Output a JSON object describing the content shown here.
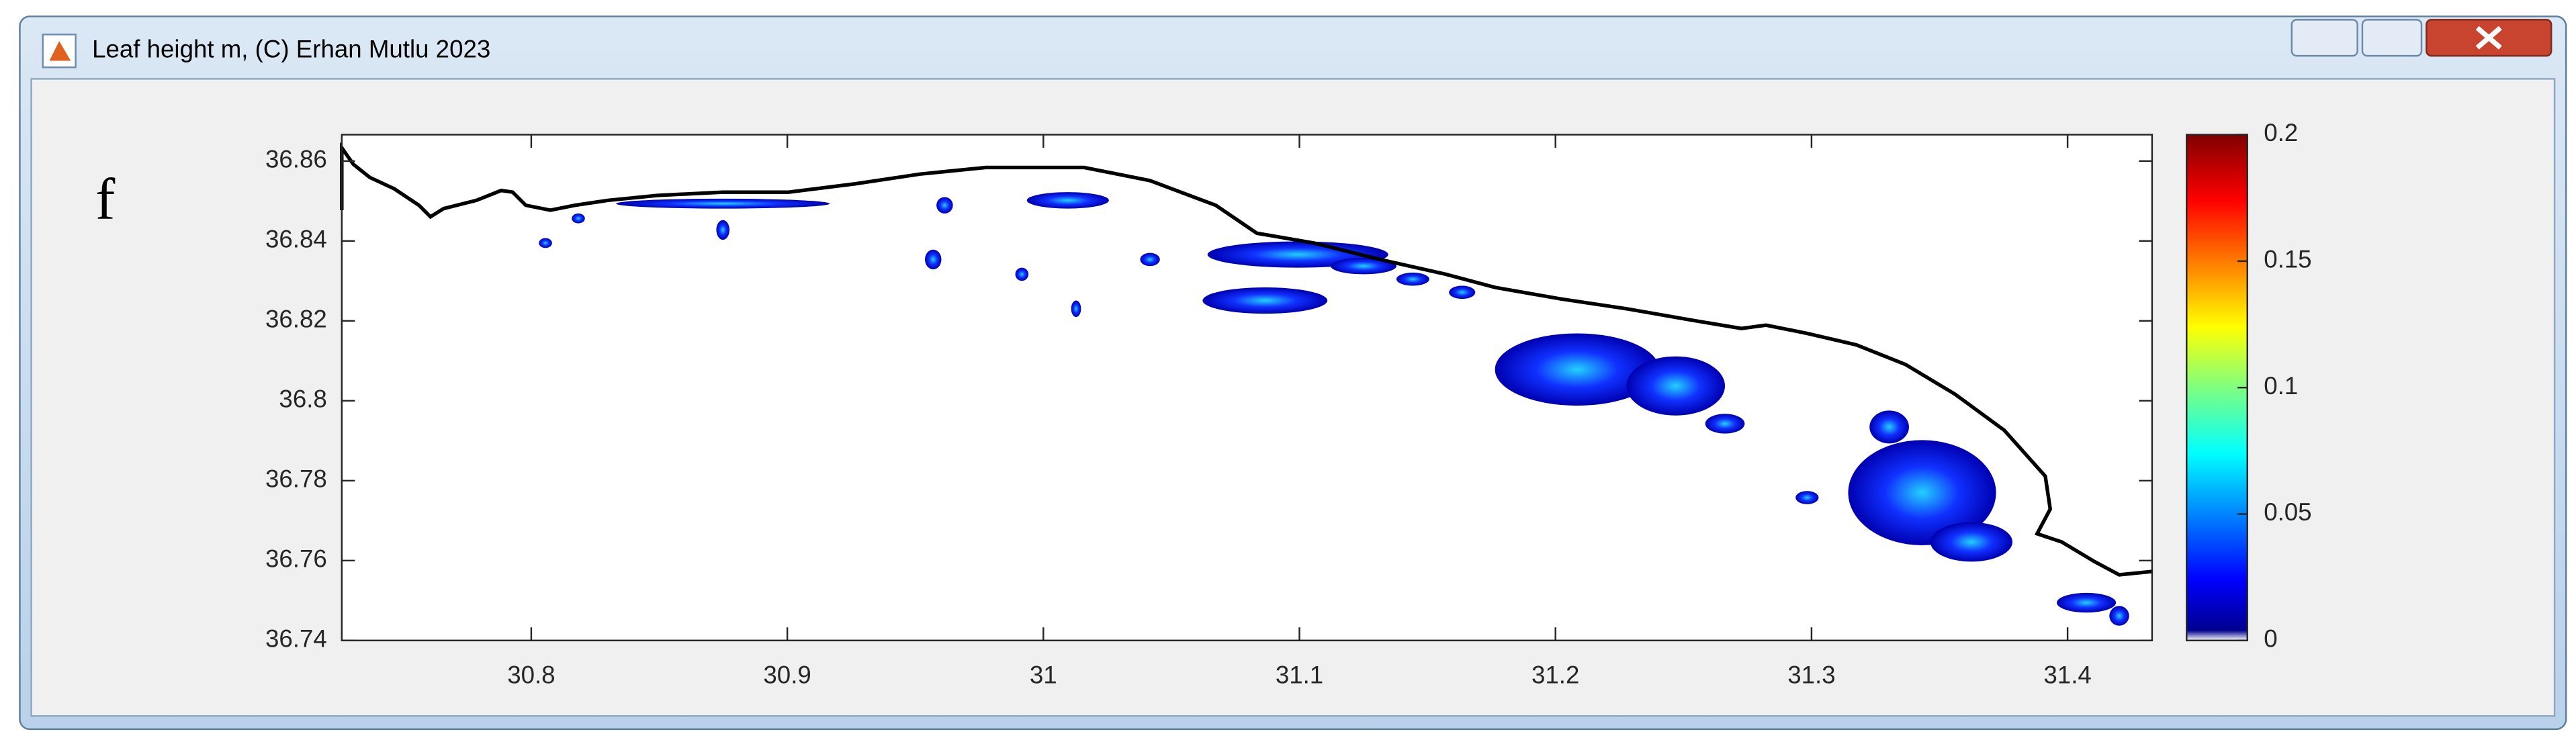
{
  "window": {
    "title": "Leaf height m, (C) Erhan Mutlu 2023"
  },
  "chart_data": {
    "type": "map",
    "annotation": "f",
    "xlim": [
      30.726,
      31.433
    ],
    "xticks": [
      30.8,
      30.9,
      31,
      31.1,
      31.2,
      31.3,
      31.4
    ],
    "ylim": [
      36.74,
      36.8666
    ],
    "yticks": [
      36.74,
      36.76,
      36.78,
      36.8,
      36.82,
      36.84,
      36.86
    ],
    "colorbar": {
      "lim": [
        0,
        0.2
      ],
      "ticks": [
        0,
        0.05,
        0.1,
        0.15,
        0.2
      ]
    }
  }
}
